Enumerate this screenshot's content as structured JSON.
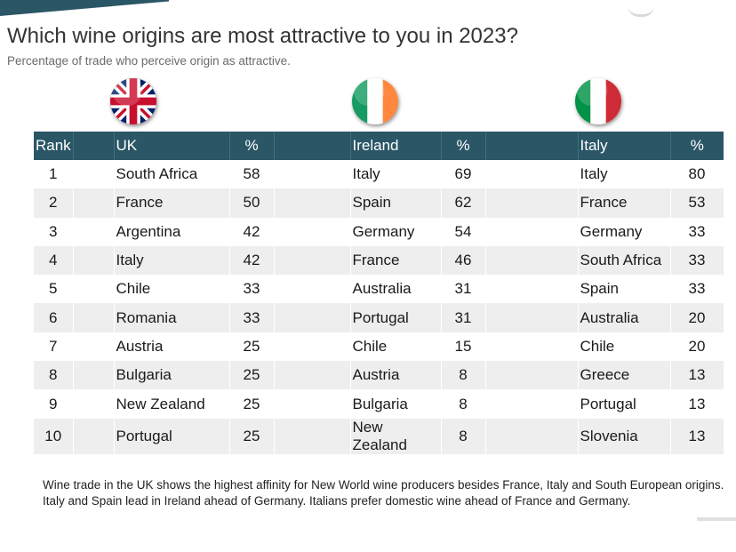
{
  "title": "Which wine origins are most attractive to you in 2023?",
  "subtitle": "Percentage of trade who perceive origin as attractive.",
  "header": {
    "rank": "Rank",
    "uk": "UK",
    "ireland": "Ireland",
    "italy": "Italy",
    "pct": "%"
  },
  "colors": {
    "header_bg": "#2a5666",
    "stripe": "#eeeeee"
  },
  "flags": [
    "uk-flag-icon",
    "ireland-flag-icon",
    "italy-flag-icon"
  ],
  "chart_data": {
    "type": "table",
    "title": "Which wine origins are most attractive to you in 2023?",
    "subtitle": "Percentage of trade who perceive origin as attractive.",
    "columns": [
      "Rank",
      "UK",
      "%",
      "Ireland",
      "%",
      "Italy",
      "%"
    ],
    "rows": [
      {
        "rank": "1",
        "uk": "South Africa",
        "uk_pct": 58,
        "ie": "Italy",
        "ie_pct": 69,
        "it": "Italy",
        "it_pct": 80
      },
      {
        "rank": "2",
        "uk": "France",
        "uk_pct": 50,
        "ie": "Spain",
        "ie_pct": 62,
        "it": "France",
        "it_pct": 53
      },
      {
        "rank": "3",
        "uk": "Argentina",
        "uk_pct": 42,
        "ie": "Germany",
        "ie_pct": 54,
        "it": "Germany",
        "it_pct": 33
      },
      {
        "rank": "4",
        "uk": "Italy",
        "uk_pct": 42,
        "ie": "France",
        "ie_pct": 46,
        "it": "South Africa",
        "it_pct": 33
      },
      {
        "rank": "5",
        "uk": "Chile",
        "uk_pct": 33,
        "ie": "Australia",
        "ie_pct": 31,
        "it": "Spain",
        "it_pct": 33
      },
      {
        "rank": "6",
        "uk": "Romania",
        "uk_pct": 33,
        "ie": "Portugal",
        "ie_pct": 31,
        "it": "Australia",
        "it_pct": 20
      },
      {
        "rank": "7",
        "uk": "Austria",
        "uk_pct": 25,
        "ie": "Chile",
        "ie_pct": 15,
        "it": "Chile",
        "it_pct": 20
      },
      {
        "rank": "8",
        "uk": "Bulgaria",
        "uk_pct": 25,
        "ie": "Austria",
        "ie_pct": 8,
        "it": "Greece",
        "it_pct": 13
      },
      {
        "rank": "9",
        "uk": "New Zealand",
        "uk_pct": 25,
        "ie": "Bulgaria",
        "ie_pct": 8,
        "it": "Portugal",
        "it_pct": 13
      },
      {
        "rank": "10",
        "uk": "Portugal",
        "uk_pct": 25,
        "ie": "New Zealand",
        "ie_pct": 8,
        "it": "Slovenia",
        "it_pct": 13
      }
    ]
  },
  "footnote": "Wine trade in the UK shows the highest affinity for New World wine producers besides France, Italy and South European origins. Italy and Spain lead in Ireland ahead of Germany. Italians prefer domestic wine ahead of France and Germany."
}
